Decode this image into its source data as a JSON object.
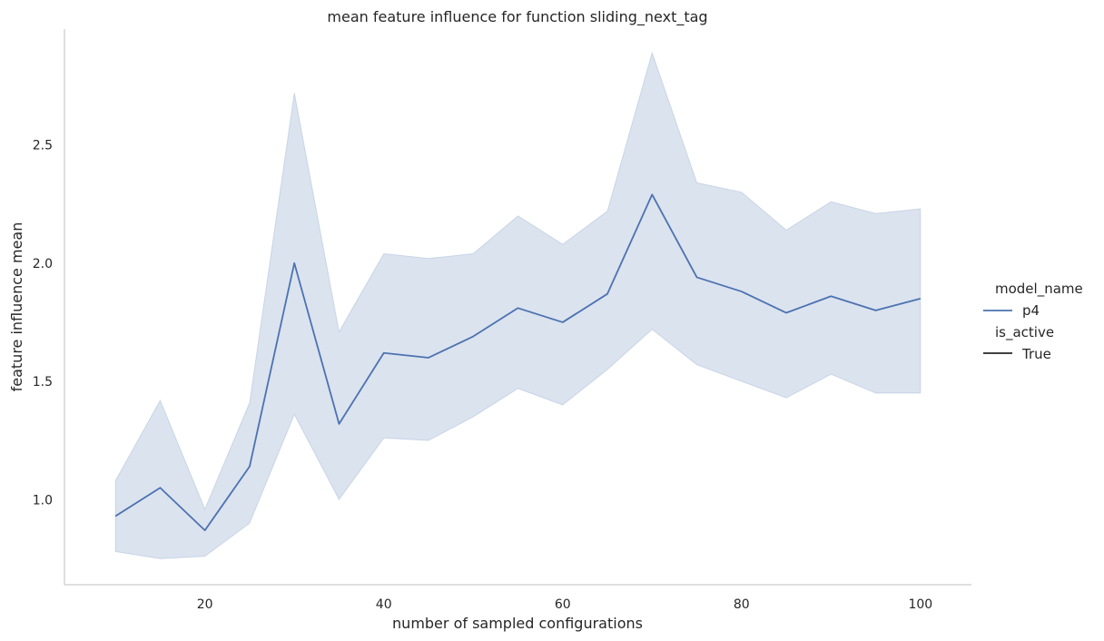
{
  "chart_data": {
    "type": "line",
    "title": "mean feature influence for function sliding_next_tag",
    "xlabel": "number of sampled configurations",
    "ylabel": "feature influence mean",
    "xlim": [
      4.3,
      105.7
    ],
    "ylim": [
      0.64,
      2.99
    ],
    "xticks": [
      20,
      40,
      60,
      80,
      100
    ],
    "yticks": [
      1.0,
      1.5,
      2.0,
      2.5
    ],
    "xtick_labels": [
      "20",
      "40",
      "60",
      "80",
      "100"
    ],
    "ytick_labels": [
      "1.0",
      "1.5",
      "2.0",
      "2.5"
    ],
    "grid": false,
    "legend": {
      "placement": "right",
      "hue_title": "model_name",
      "style_title": "is_active",
      "entries": [
        {
          "label": "p4",
          "color": "#4c72b0"
        },
        {
          "label": "True",
          "color": "#262626"
        }
      ]
    },
    "series": [
      {
        "name": "p4",
        "color": "#4c72b0",
        "x": [
          10,
          15,
          20,
          25,
          30,
          35,
          40,
          45,
          50,
          55,
          60,
          65,
          70,
          75,
          80,
          85,
          90,
          95,
          100
        ],
        "y": [
          0.93,
          1.05,
          0.87,
          1.14,
          2.0,
          1.32,
          1.62,
          1.6,
          1.69,
          1.81,
          1.75,
          1.87,
          2.29,
          1.94,
          1.88,
          1.79,
          1.86,
          1.8,
          1.85
        ],
        "ci_lower": [
          0.78,
          0.75,
          0.76,
          0.9,
          1.36,
          1.0,
          1.26,
          1.25,
          1.35,
          1.47,
          1.4,
          1.55,
          1.72,
          1.57,
          1.5,
          1.43,
          1.53,
          1.45,
          1.45
        ],
        "ci_upper": [
          1.08,
          1.42,
          0.96,
          1.41,
          2.72,
          1.71,
          2.04,
          2.02,
          2.04,
          2.2,
          2.08,
          2.22,
          2.89,
          2.34,
          2.3,
          2.14,
          2.26,
          2.21,
          2.23
        ]
      }
    ]
  }
}
